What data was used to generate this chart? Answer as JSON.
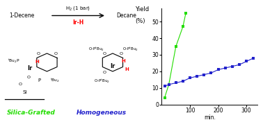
{
  "green_x": [
    10,
    25,
    50,
    75,
    85
  ],
  "green_y": [
    4,
    12,
    35,
    47,
    55
  ],
  "blue_x": [
    10,
    25,
    50,
    75,
    100,
    125,
    150,
    175,
    200,
    225,
    250,
    275,
    300,
    325
  ],
  "blue_y": [
    11,
    12,
    13,
    14,
    16,
    17,
    18,
    19,
    21,
    22,
    23,
    24,
    26,
    28
  ],
  "green_color": "#22dd00",
  "blue_color": "#2222cc",
  "ylabel_line1": "Yield",
  "ylabel_line2": "(%)",
  "xlabel": "min.",
  "ylim": [
    0,
    58
  ],
  "xlim": [
    0,
    340
  ],
  "yticks": [
    0,
    10,
    20,
    30,
    40,
    50
  ],
  "xticks": [
    100,
    200,
    300
  ],
  "green_label": "Silica-Grafted",
  "blue_label": "Homogeneous",
  "bg_color": "#ffffff"
}
